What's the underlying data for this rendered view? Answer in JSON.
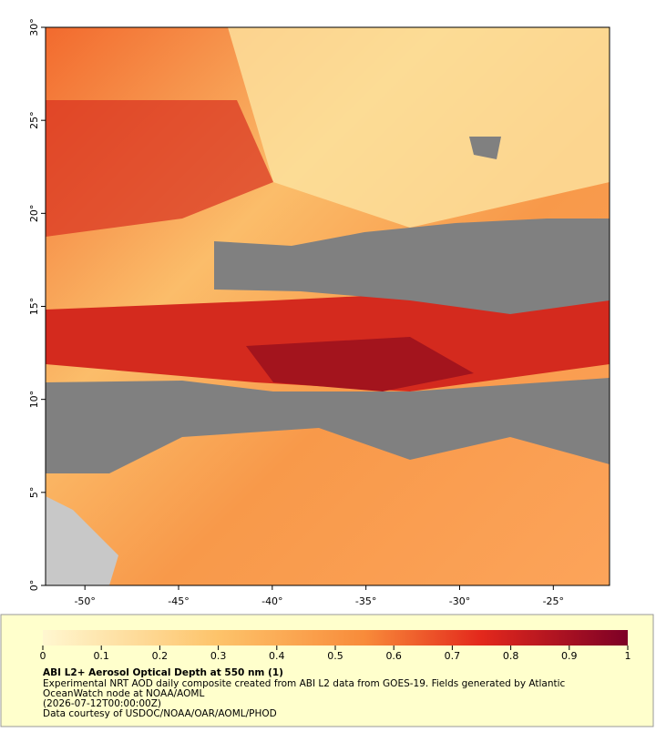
{
  "map": {
    "xlim": [
      -52.1,
      -22.0
    ],
    "ylim": [
      0,
      30
    ],
    "xticks": [
      {
        "value": -50,
        "label": "-50°"
      },
      {
        "value": -45,
        "label": "-45°"
      },
      {
        "value": -40,
        "label": "-40°"
      },
      {
        "value": -35,
        "label": "-35°"
      },
      {
        "value": -30,
        "label": "-30°"
      },
      {
        "value": -25,
        "label": "-25°"
      }
    ],
    "yticks": [
      {
        "value": 0,
        "label": "0°"
      },
      {
        "value": 5,
        "label": "5°"
      },
      {
        "value": 10,
        "label": "10°"
      },
      {
        "value": 15,
        "label": "15°"
      },
      {
        "value": 20,
        "label": "20°"
      },
      {
        "value": 25,
        "label": "25°"
      },
      {
        "value": 30,
        "label": "30°"
      }
    ]
  },
  "colorbar": {
    "range": [
      0,
      1
    ],
    "ticks": [
      0,
      0.1,
      0.2,
      0.3,
      0.4,
      0.5,
      0.6,
      0.7,
      0.8,
      0.9,
      1
    ]
  },
  "legend": {
    "title": "ABI L2+ Aerosol Optical Depth at 550 nm (1)",
    "lines": [
      "Experimental NRT AOD daily composite created from ABI L2 data from GOES-19. Fields generated by Atlantic",
      "OceanWatch node at NOAA/AOML",
      "(2026-07-12T00:00:00Z)",
      "Data courtesy of USDOC/NOAA/OAR/AOML/PHOD"
    ]
  }
}
